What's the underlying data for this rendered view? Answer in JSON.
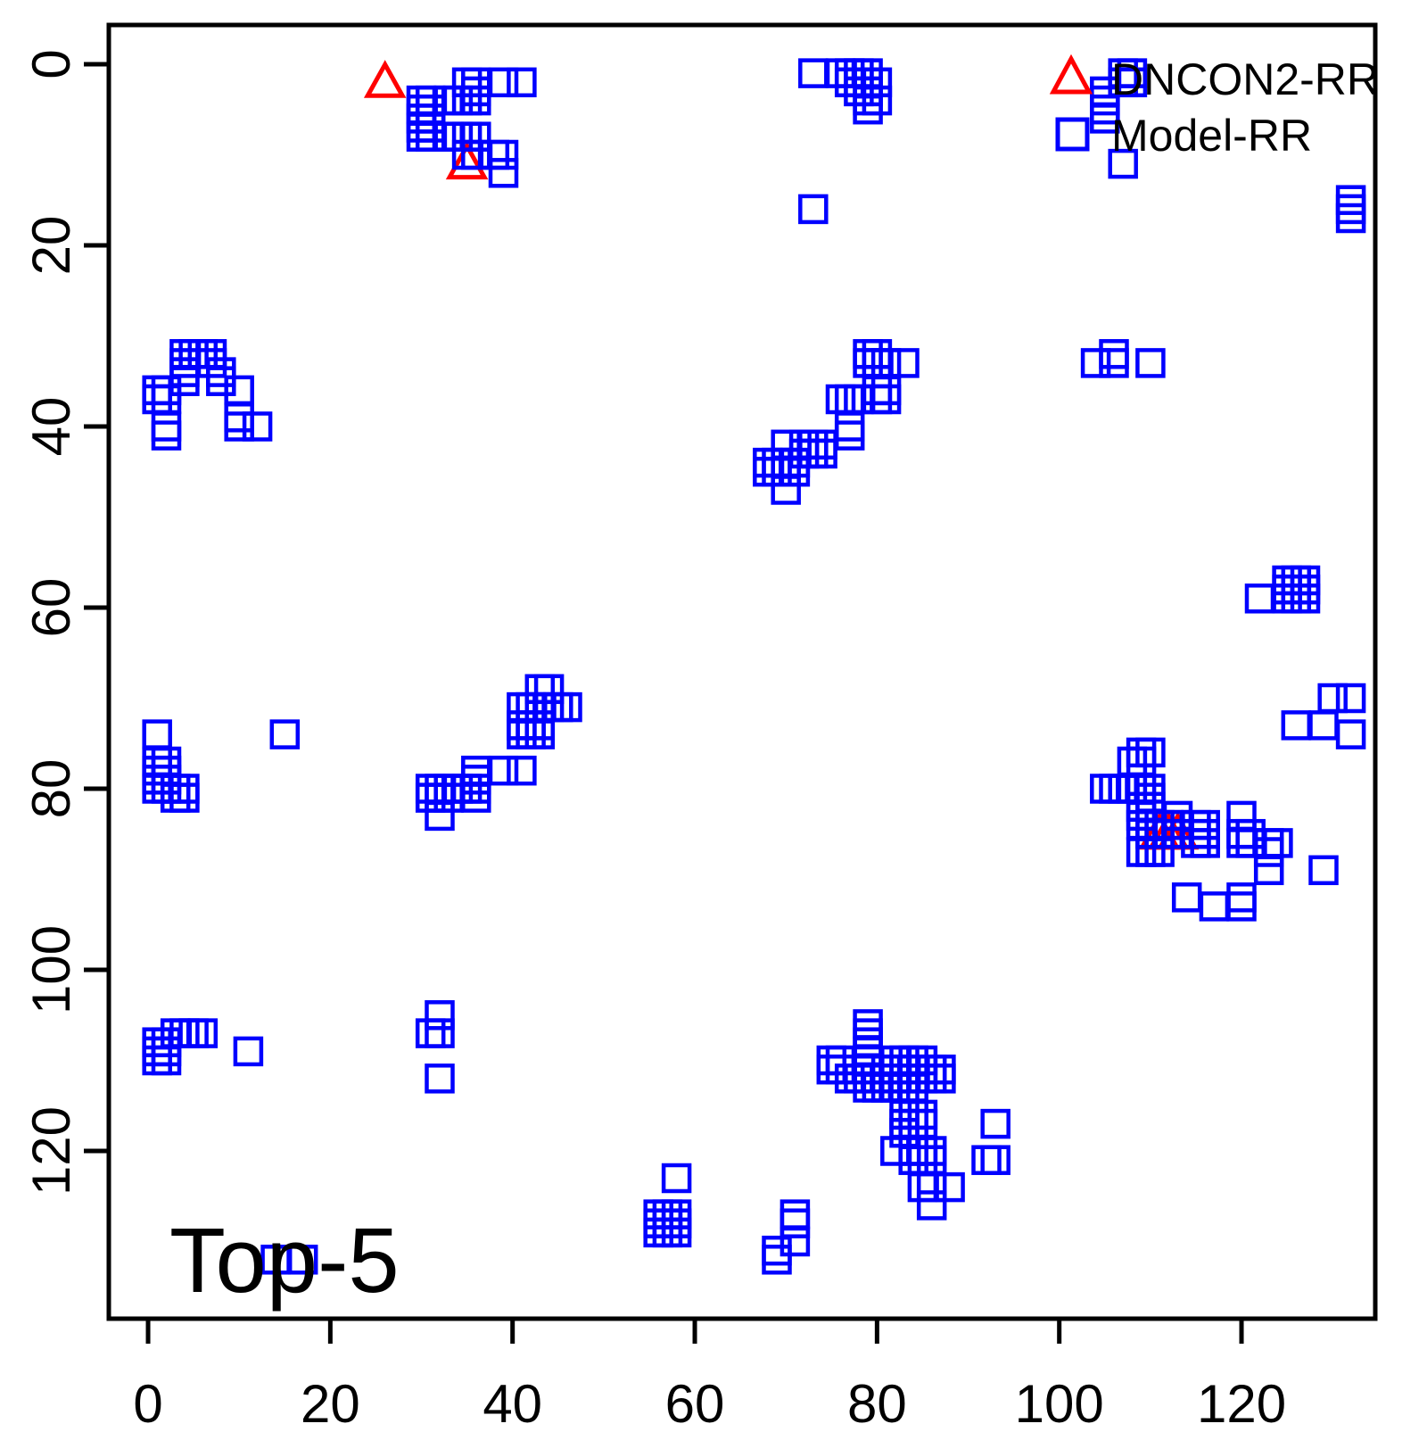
{
  "title": "Top-5",
  "chart_data": {
    "type": "scatter",
    "title": "Top-5",
    "xlabel": "",
    "ylabel": "",
    "grid": false,
    "y_axis_inverted": true,
    "x_ticks": [
      0,
      20,
      40,
      60,
      80,
      100,
      120
    ],
    "y_ticks": [
      0,
      20,
      40,
      60,
      80,
      100,
      120
    ],
    "x_range": [
      -4.31,
      134.68
    ],
    "y_range": [
      -4.33,
      138.52
    ],
    "legend": [
      {
        "label": "DNCON2-RR",
        "marker": "triangle",
        "color": "#FF0000"
      },
      {
        "label": "Model-RR",
        "marker": "square",
        "color": "#0000FF"
      }
    ],
    "legend_position": "top-right",
    "series": [
      {
        "name": "DNCON2-RR",
        "marker": "triangle",
        "color": "#FF0000",
        "points": [
          [
            26,
            2
          ],
          [
            35,
            11
          ],
          [
            111,
            85
          ],
          [
            112,
            85
          ],
          [
            113,
            85
          ]
        ]
      },
      {
        "name": "Model-RR",
        "marker": "square",
        "color": "#0000FF",
        "points": [
          [
            35,
            2
          ],
          [
            36,
            2
          ],
          [
            36,
            3
          ],
          [
            39,
            2
          ],
          [
            41,
            2
          ],
          [
            30,
            4
          ],
          [
            31,
            4
          ],
          [
            33,
            4
          ],
          [
            34,
            4
          ],
          [
            35,
            4
          ],
          [
            36,
            4
          ],
          [
            30,
            5
          ],
          [
            31,
            5
          ],
          [
            30,
            6
          ],
          [
            31,
            6
          ],
          [
            30,
            7
          ],
          [
            31,
            7
          ],
          [
            30,
            8
          ],
          [
            31,
            8
          ],
          [
            33,
            8
          ],
          [
            34,
            8
          ],
          [
            35,
            8
          ],
          [
            36,
            8
          ],
          [
            35,
            10
          ],
          [
            36,
            10
          ],
          [
            38,
            10
          ],
          [
            39,
            10
          ],
          [
            39,
            12
          ],
          [
            73,
            1
          ],
          [
            76,
            1
          ],
          [
            77,
            1
          ],
          [
            78,
            1
          ],
          [
            79,
            1
          ],
          [
            77,
            2
          ],
          [
            78,
            2
          ],
          [
            79,
            2
          ],
          [
            80,
            2
          ],
          [
            78,
            3
          ],
          [
            79,
            3
          ],
          [
            79,
            4
          ],
          [
            80,
            4
          ],
          [
            79,
            5
          ],
          [
            73,
            16
          ],
          [
            105,
            3
          ],
          [
            105,
            4
          ],
          [
            105,
            5
          ],
          [
            105,
            6
          ],
          [
            107,
            1
          ],
          [
            108,
            1
          ],
          [
            107,
            2
          ],
          [
            108,
            2
          ],
          [
            107,
            11
          ],
          [
            132,
            15
          ],
          [
            132,
            16
          ],
          [
            132,
            17
          ],
          [
            4,
            32
          ],
          [
            5,
            32
          ],
          [
            6,
            32
          ],
          [
            7,
            32
          ],
          [
            4,
            33
          ],
          [
            7,
            33
          ],
          [
            4,
            34
          ],
          [
            4,
            35
          ],
          [
            8,
            34
          ],
          [
            8,
            35
          ],
          [
            1,
            36
          ],
          [
            2,
            36
          ],
          [
            1,
            37
          ],
          [
            2,
            37
          ],
          [
            10,
            36
          ],
          [
            10,
            39
          ],
          [
            10,
            40
          ],
          [
            12,
            40
          ],
          [
            2,
            40
          ],
          [
            2,
            41
          ],
          [
            79,
            32
          ],
          [
            80,
            32
          ],
          [
            79,
            33
          ],
          [
            80,
            33
          ],
          [
            81,
            33
          ],
          [
            83,
            33
          ],
          [
            80,
            36
          ],
          [
            81,
            36
          ],
          [
            80,
            37
          ],
          [
            81,
            37
          ],
          [
            76,
            37
          ],
          [
            77,
            37
          ],
          [
            78,
            37
          ],
          [
            77,
            40
          ],
          [
            77,
            41
          ],
          [
            70,
            42
          ],
          [
            72,
            42
          ],
          [
            73,
            42
          ],
          [
            74,
            42
          ],
          [
            72,
            43
          ],
          [
            73,
            43
          ],
          [
            74,
            43
          ],
          [
            68,
            44
          ],
          [
            69,
            44
          ],
          [
            70,
            44
          ],
          [
            71,
            44
          ],
          [
            68,
            45
          ],
          [
            69,
            45
          ],
          [
            70,
            45
          ],
          [
            71,
            45
          ],
          [
            70,
            47
          ],
          [
            104,
            33
          ],
          [
            106,
            32
          ],
          [
            106,
            33
          ],
          [
            110,
            33
          ],
          [
            122,
            59
          ],
          [
            125,
            57
          ],
          [
            126,
            57
          ],
          [
            127,
            57
          ],
          [
            125,
            58
          ],
          [
            126,
            58
          ],
          [
            127,
            58
          ],
          [
            125,
            59
          ],
          [
            126,
            59
          ],
          [
            127,
            59
          ],
          [
            43,
            69
          ],
          [
            44,
            69
          ],
          [
            41,
            71
          ],
          [
            42,
            71
          ],
          [
            43,
            71
          ],
          [
            44,
            71
          ],
          [
            45,
            71
          ],
          [
            46,
            71
          ],
          [
            41,
            73
          ],
          [
            42,
            73
          ],
          [
            43,
            73
          ],
          [
            41,
            74
          ],
          [
            42,
            74
          ],
          [
            43,
            74
          ],
          [
            36,
            78
          ],
          [
            36,
            79
          ],
          [
            36,
            80
          ],
          [
            36,
            81
          ],
          [
            39,
            78
          ],
          [
            41,
            78
          ],
          [
            31,
            80
          ],
          [
            32,
            80
          ],
          [
            33,
            80
          ],
          [
            34,
            80
          ],
          [
            35,
            80
          ],
          [
            31,
            81
          ],
          [
            32,
            81
          ],
          [
            33,
            81
          ],
          [
            32,
            83
          ],
          [
            1,
            74
          ],
          [
            15,
            74
          ],
          [
            1,
            77
          ],
          [
            2,
            77
          ],
          [
            1,
            78
          ],
          [
            2,
            78
          ],
          [
            1,
            79
          ],
          [
            2,
            79
          ],
          [
            1,
            80
          ],
          [
            2,
            80
          ],
          [
            3,
            80
          ],
          [
            4,
            80
          ],
          [
            3,
            81
          ],
          [
            4,
            81
          ],
          [
            109,
            76
          ],
          [
            110,
            76
          ],
          [
            108,
            77
          ],
          [
            109,
            77
          ],
          [
            105,
            80
          ],
          [
            106,
            80
          ],
          [
            107,
            80
          ],
          [
            108,
            80
          ],
          [
            109,
            80
          ],
          [
            110,
            80
          ],
          [
            110,
            81
          ],
          [
            109,
            82
          ],
          [
            110,
            82
          ],
          [
            109,
            83
          ],
          [
            113,
            83
          ],
          [
            109,
            84
          ],
          [
            110,
            84
          ],
          [
            111,
            84
          ],
          [
            112,
            84
          ],
          [
            113,
            84
          ],
          [
            115,
            84
          ],
          [
            116,
            84
          ],
          [
            110,
            85
          ],
          [
            111,
            85
          ],
          [
            112,
            85
          ],
          [
            113,
            85
          ],
          [
            115,
            85
          ],
          [
            116,
            85
          ],
          [
            115,
            86
          ],
          [
            116,
            86
          ],
          [
            120,
            83
          ],
          [
            120,
            85
          ],
          [
            121,
            85
          ],
          [
            120,
            86
          ],
          [
            121,
            86
          ],
          [
            123,
            86
          ],
          [
            124,
            86
          ],
          [
            123,
            87
          ],
          [
            123,
            89
          ],
          [
            129,
            89
          ],
          [
            109,
            87
          ],
          [
            110,
            87
          ],
          [
            111,
            87
          ],
          [
            114,
            92
          ],
          [
            117,
            93
          ],
          [
            120,
            92
          ],
          [
            120,
            93
          ],
          [
            130,
            70
          ],
          [
            132,
            70
          ],
          [
            126,
            73
          ],
          [
            129,
            73
          ],
          [
            132,
            74
          ],
          [
            3,
            107
          ],
          [
            4,
            107
          ],
          [
            5,
            107
          ],
          [
            6,
            107
          ],
          [
            1,
            108
          ],
          [
            2,
            108
          ],
          [
            1,
            109
          ],
          [
            2,
            109
          ],
          [
            1,
            110
          ],
          [
            2,
            110
          ],
          [
            11,
            109
          ],
          [
            32,
            105
          ],
          [
            31,
            107
          ],
          [
            32,
            107
          ],
          [
            32,
            112
          ],
          [
            79,
            106
          ],
          [
            79,
            107
          ],
          [
            79,
            108
          ],
          [
            79,
            109
          ],
          [
            79,
            110
          ],
          [
            79,
            111
          ],
          [
            79,
            112
          ],
          [
            79,
            113
          ],
          [
            75,
            110
          ],
          [
            76,
            110
          ],
          [
            75,
            111
          ],
          [
            76,
            111
          ],
          [
            82,
            110
          ],
          [
            83,
            110
          ],
          [
            84,
            110
          ],
          [
            85,
            110
          ],
          [
            81,
            111
          ],
          [
            82,
            111
          ],
          [
            83,
            111
          ],
          [
            84,
            111
          ],
          [
            85,
            111
          ],
          [
            86,
            111
          ],
          [
            87,
            111
          ],
          [
            77,
            112
          ],
          [
            78,
            112
          ],
          [
            82,
            112
          ],
          [
            83,
            112
          ],
          [
            84,
            112
          ],
          [
            85,
            112
          ],
          [
            86,
            112
          ],
          [
            87,
            112
          ],
          [
            80,
            113
          ],
          [
            81,
            113
          ],
          [
            82,
            113
          ],
          [
            83,
            113
          ],
          [
            84,
            113
          ],
          [
            83,
            116
          ],
          [
            84,
            116
          ],
          [
            85,
            116
          ],
          [
            83,
            117
          ],
          [
            84,
            117
          ],
          [
            85,
            117
          ],
          [
            83,
            118
          ],
          [
            82,
            120
          ],
          [
            84,
            120
          ],
          [
            85,
            120
          ],
          [
            86,
            120
          ],
          [
            84,
            121
          ],
          [
            85,
            121
          ],
          [
            86,
            121
          ],
          [
            85,
            124
          ],
          [
            86,
            124
          ],
          [
            88,
            124
          ],
          [
            93,
            117
          ],
          [
            92,
            121
          ],
          [
            93,
            121
          ],
          [
            58,
            123
          ],
          [
            56,
            127
          ],
          [
            57,
            127
          ],
          [
            58,
            127
          ],
          [
            56,
            128
          ],
          [
            57,
            128
          ],
          [
            58,
            128
          ],
          [
            56,
            129
          ],
          [
            57,
            129
          ],
          [
            58,
            129
          ],
          [
            71,
            127
          ],
          [
            71,
            128
          ],
          [
            71,
            130
          ],
          [
            69,
            131
          ],
          [
            69,
            132
          ],
          [
            86,
            126
          ],
          [
            14,
            132
          ],
          [
            17,
            132
          ]
        ]
      }
    ]
  }
}
